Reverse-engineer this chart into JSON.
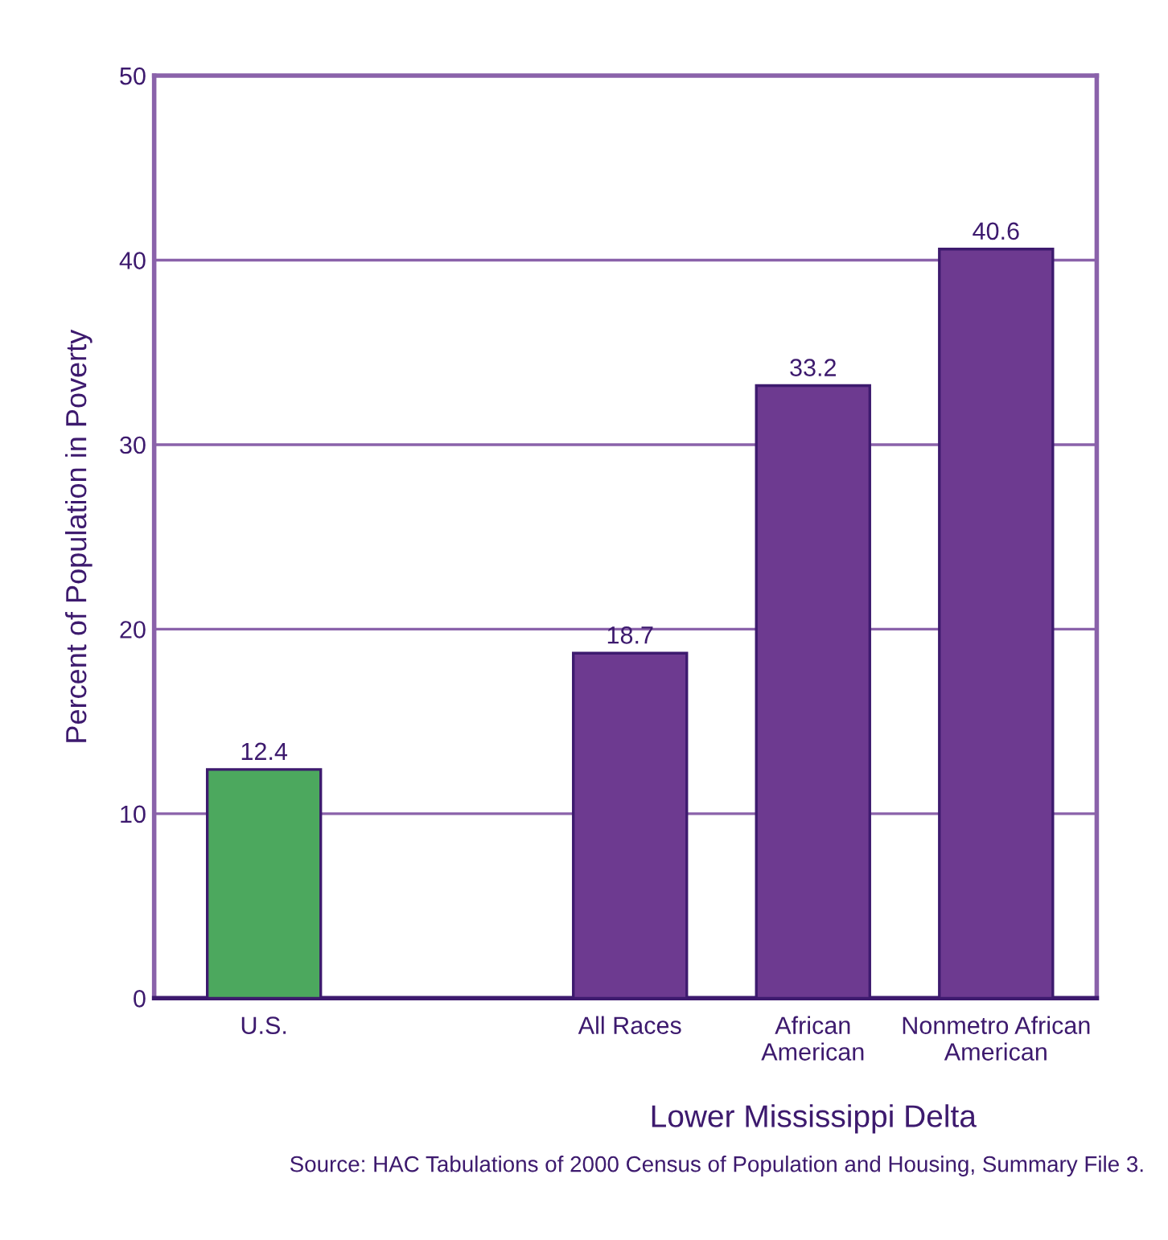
{
  "chart_data": {
    "type": "bar",
    "categories": [
      "U.S.",
      null,
      "All Races",
      "African\nAmerican",
      "Nonmetro African\nAmerican"
    ],
    "values": [
      12.4,
      null,
      18.7,
      33.2,
      40.6
    ],
    "colors": [
      "#4ca85e",
      "#6d3a90",
      "#6d3a90",
      "#6d3a90",
      "#6d3a90"
    ],
    "data_labels": true,
    "ylabel": "Percent of Population in Poverty",
    "xlabel": "Lower Mississippi Delta",
    "ylim": [
      0,
      50
    ],
    "yticks": [
      0,
      10,
      20,
      30,
      40,
      50
    ],
    "grid": "y",
    "legend": false,
    "annotations": [
      "Source: HAC Tabulations of 2000 Census of Population and Housing, Summary File 3."
    ]
  }
}
